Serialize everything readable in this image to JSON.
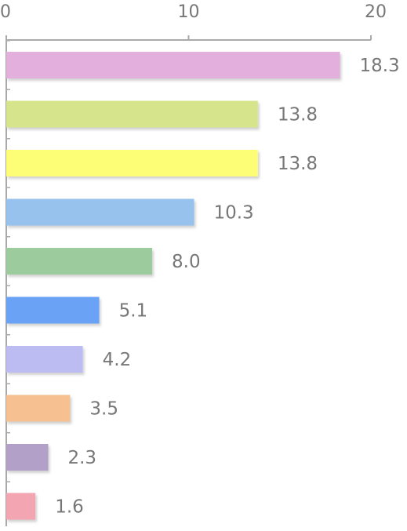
{
  "chart_data": {
    "type": "bar",
    "orientation": "horizontal",
    "xlim": [
      0,
      20
    ],
    "x_ticks": [
      "0",
      "10",
      "20"
    ],
    "grid": false,
    "values": [
      18.3,
      13.8,
      13.8,
      10.3,
      8.0,
      5.1,
      4.2,
      3.5,
      2.3,
      1.6
    ],
    "labels": [
      "18.3",
      "13.8",
      "13.8",
      "10.3",
      "8.0",
      "5.1",
      "4.2",
      "3.5",
      "2.3",
      "1.6"
    ],
    "colors": [
      "#e3b0de",
      "#d6e48b",
      "#fdfd76",
      "#97c2ee",
      "#9ccc9e",
      "#6aa3f6",
      "#bcbcf3",
      "#f6c090",
      "#b3a0c9",
      "#f3a5b1"
    ],
    "axis_color": "#aaaaaa",
    "label_color": "#777777"
  }
}
